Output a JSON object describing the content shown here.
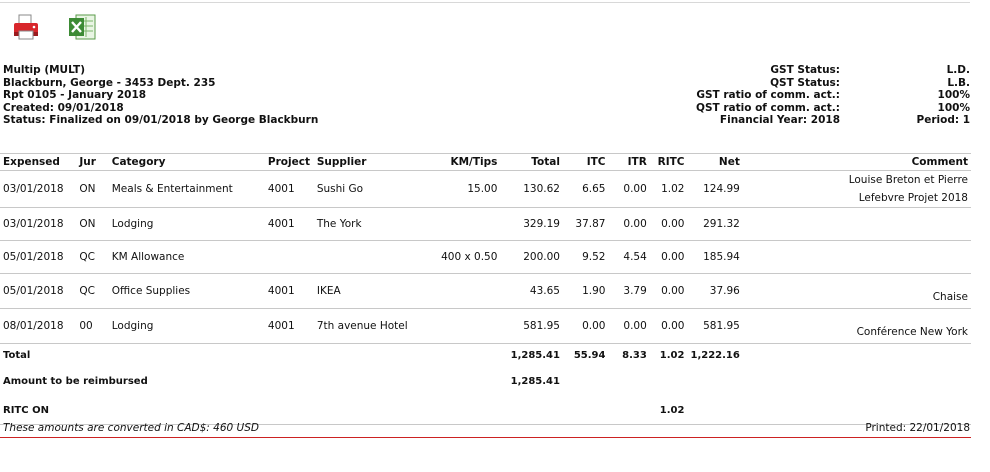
{
  "toolbar": {
    "print_icon": "printer-icon",
    "excel_icon": "excel-icon"
  },
  "header": {
    "company": "Multip (MULT)",
    "employee": "Blackburn, George - 3453 Dept. 235",
    "report": "Rpt 0105 - January 2018",
    "created": "Created: 09/01/2018",
    "status": "Status: Finalized on 09/01/2018 by George Blackburn",
    "gst_status_label": "GST Status:",
    "gst_status_value": "L.D.",
    "qst_status_label": "QST Status:",
    "qst_status_value": "L.B.",
    "gst_ratio_label": "GST ratio of comm. act.:",
    "gst_ratio_value": "100%",
    "qst_ratio_label": "QST ratio of comm. act.:",
    "qst_ratio_value": "100%",
    "financial_year": "Financial Year: 2018",
    "period": "Period: 1"
  },
  "table": {
    "columns": {
      "expensed": "Expensed",
      "jur": "Jur",
      "category": "Category",
      "project": "Project",
      "supplier": "Supplier",
      "km": "KM/Tips",
      "total": "Total",
      "itc": "ITC",
      "itr": "ITR",
      "ritc": "RITC",
      "net": "Net",
      "comment": "Comment"
    },
    "rows": [
      {
        "expensed": "03/01/2018",
        "jur": "ON",
        "category": "Meals & Entertainment",
        "project": "4001",
        "supplier": "Sushi Go",
        "km": "15.00",
        "total": "130.62",
        "itc": "6.65",
        "itr": "0.00",
        "ritc": "1.02",
        "net": "124.99",
        "comment": "Louise Breton et Pierre Lefebvre Projet 2018"
      },
      {
        "expensed": "03/01/2018",
        "jur": "ON",
        "category": "Lodging",
        "project": "4001",
        "supplier": "The York",
        "km": "",
        "total": "329.19",
        "itc": "37.87",
        "itr": "0.00",
        "ritc": "0.00",
        "net": "291.32",
        "comment": ""
      },
      {
        "expensed": "05/01/2018",
        "jur": "QC",
        "category": "KM Allowance",
        "project": "",
        "supplier": "",
        "km": "400 x 0.50",
        "total": "200.00",
        "itc": "9.52",
        "itr": "4.54",
        "ritc": "0.00",
        "net": "185.94",
        "comment": ""
      },
      {
        "expensed": "05/01/2018",
        "jur": "QC",
        "category": "Office Supplies",
        "project": "4001",
        "supplier": "IKEA",
        "km": "",
        "total": "43.65",
        "itc": "1.90",
        "itr": "3.79",
        "ritc": "0.00",
        "net": "37.96",
        "comment": "Chaise"
      },
      {
        "expensed": "08/01/2018",
        "jur": "00",
        "category": "Lodging",
        "project": "4001",
        "supplier": "7th avenue Hotel",
        "km": "",
        "total": "581.95",
        "itc": "0.00",
        "itr": "0.00",
        "ritc": "0.00",
        "net": "581.95",
        "comment": "Conférence New York"
      }
    ],
    "totals": {
      "label": "Total",
      "total": "1,285.41",
      "itc": "55.94",
      "itr": "8.33",
      "ritc": "1.02",
      "net": "1,222.16"
    },
    "reimburse": {
      "label": "Amount to be reimbursed",
      "total": "1,285.41"
    },
    "ritc_on": {
      "label": "RITC ON",
      "ritc": "1.02"
    }
  },
  "footer": {
    "note": "These amounts are converted in CAD$: 460 USD",
    "printed": "Printed: 22/01/2018"
  }
}
